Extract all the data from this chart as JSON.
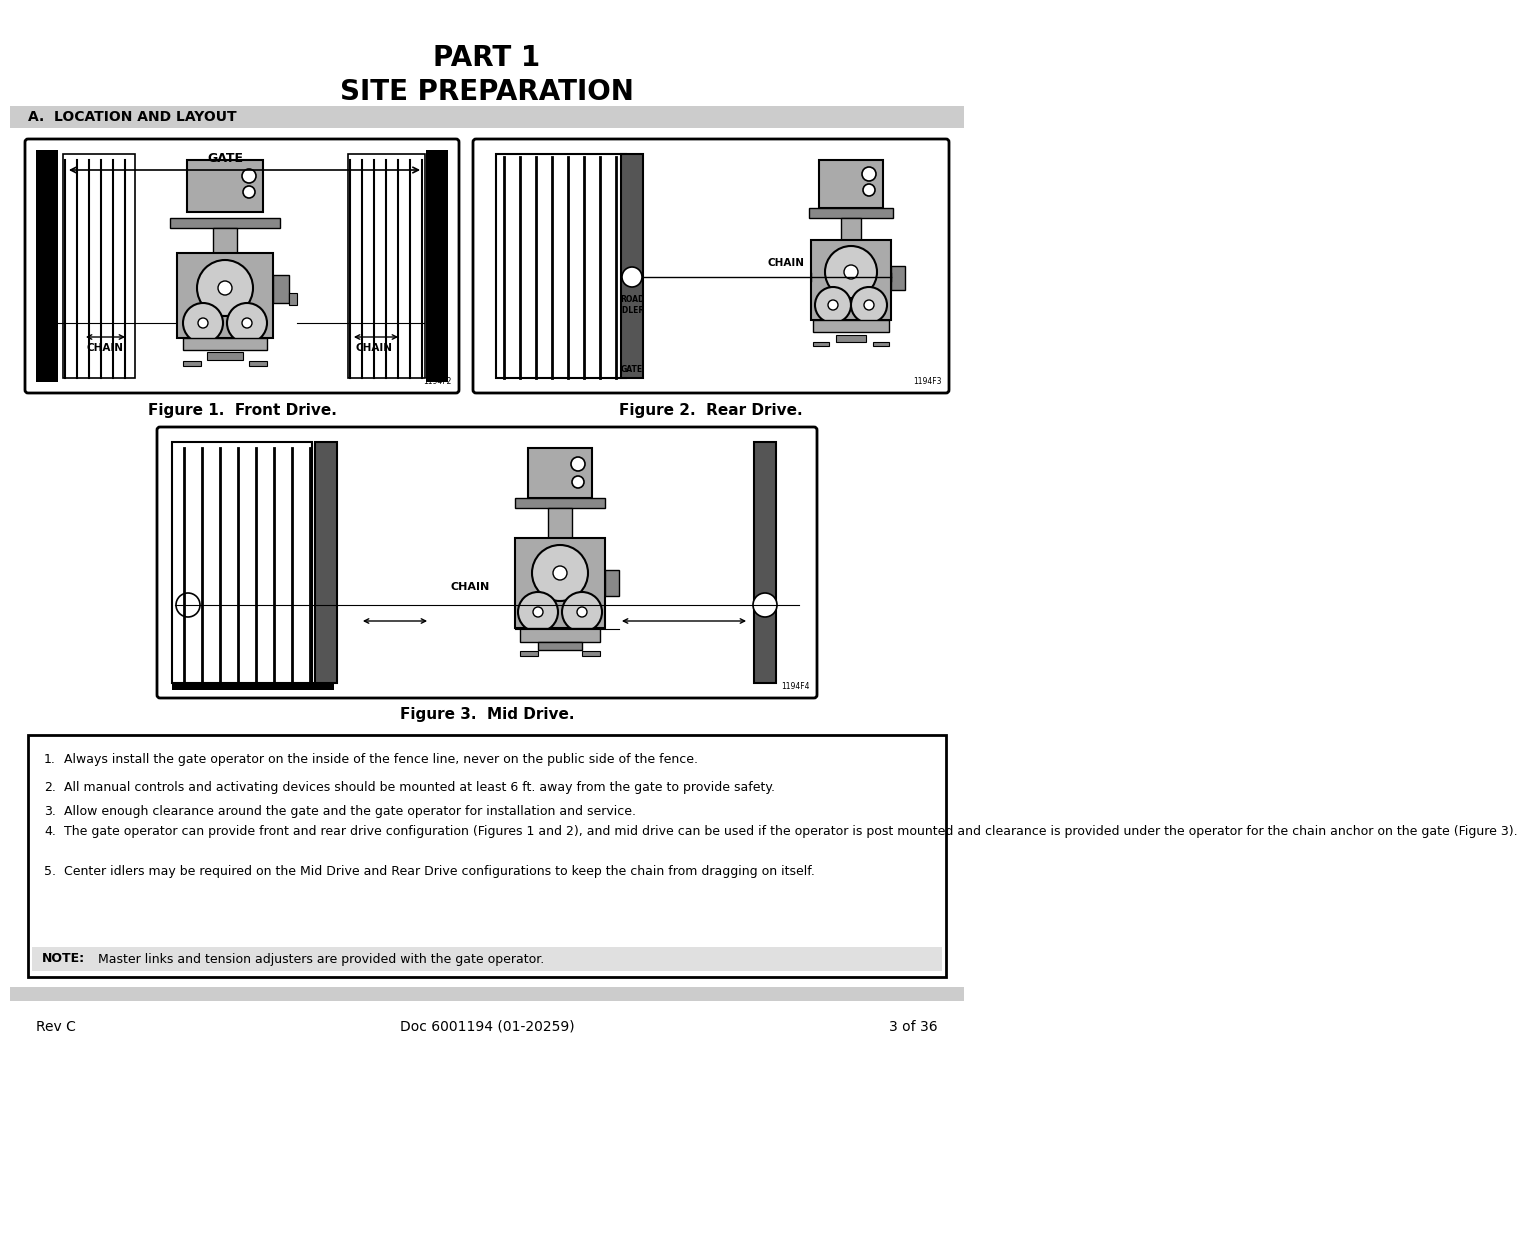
{
  "title_line1": "PART 1",
  "title_line2": "SITE PREPARATION",
  "section_header": "A.  LOCATION AND LAYOUT",
  "fig1_caption": "Figure 1.  Front Drive.",
  "fig2_caption": "Figure 2.  Rear Drive.",
  "fig3_caption": "Figure 3.  Mid Drive.",
  "notes": [
    "Always install the gate operator on the inside of the fence line, never on the public side of the fence.",
    "All manual controls and activating devices should be mounted at least 6 ft. away from the gate to provide safety.",
    "Allow enough clearance around the gate and the gate operator for installation and service.",
    "The gate operator can provide front and rear drive configuration (Figures 1 and 2), and mid drive can be used if the operator is post mounted and clearance is provided under the operator for the chain anchor on the gate (Figure 3).",
    "Center idlers may be required on the Mid Drive and Rear Drive configurations to keep the chain from dragging on itself."
  ],
  "note_bold": "NOTE:",
  "note_rest": "  Master links and tension adjusters are provided with the gate operator.",
  "footer_left": "Rev C",
  "footer_center": "Doc 6001194 (01-20259)",
  "footer_right": "3 of 36",
  "bg_color": "#ffffff",
  "section_bg": "#cccccc",
  "note_bg": "#e0e0e0",
  "border_color": "#000000",
  "text_color": "#000000",
  "footer_bar_color": "#cccccc",
  "gray_dark": "#555555",
  "gray_med": "#888888",
  "gray_light": "#aaaaaa",
  "gray_lighter": "#cccccc"
}
